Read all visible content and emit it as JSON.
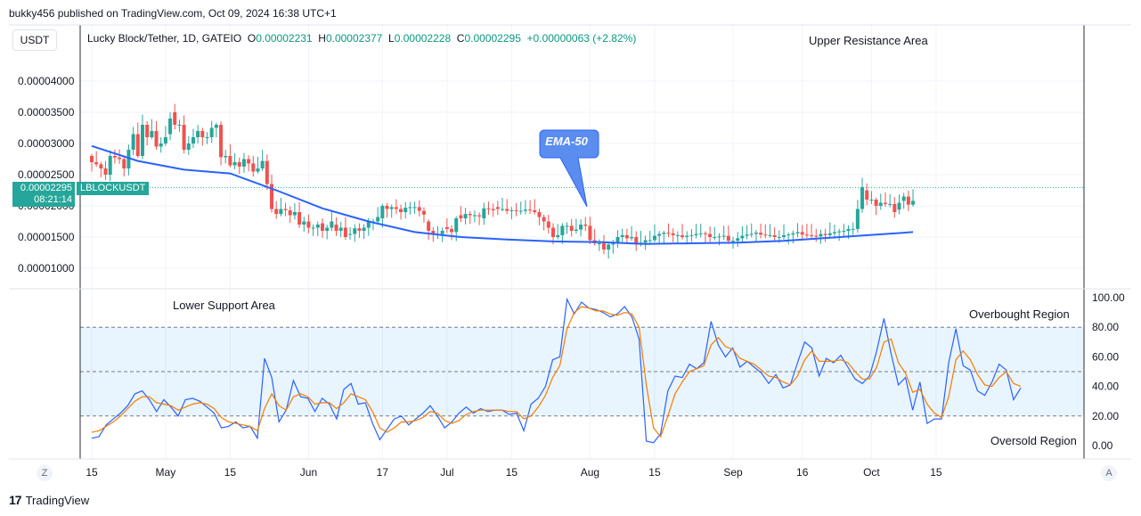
{
  "header": {
    "publisher_line": "bukky456 published on TradingView.com, Oct 09, 2024 16:38 UTC+1"
  },
  "footer": {
    "brand": "TradingView",
    "logo_icon": "tradingview-logo-icon"
  },
  "toolbar": {
    "currency": "USDT",
    "z_label": "Z",
    "a_label": "A"
  },
  "legend": {
    "symbol": "Lucky Block/Tether, 1D, GATEIO",
    "o_label": "O",
    "o_value": "0.00002231",
    "h_label": "H",
    "h_value": "0.00002377",
    "l_label": "L",
    "l_value": "0.00002228",
    "c_label": "C",
    "c_value": "0.00002295",
    "change": "+0.00000063 (+2.82%)"
  },
  "price_tag": {
    "price": "0.00002295",
    "countdown": "08:21:14",
    "symbol": "LBLOCKUSDT"
  },
  "colors": {
    "up": "#26a69a",
    "down": "#ef5350",
    "ema": "#2962ff",
    "rsi": "#2962ff",
    "rsi_ma": "#f57c00",
    "band": "#2196f3",
    "accent": "#26a69a"
  },
  "annotations": {
    "upper": "Upper Resistance Area",
    "lower": "Lower Support Area",
    "overbought": "Overbought Region",
    "oversold": "Oversold Region",
    "ema_callout": "EMA-50"
  },
  "chart_data": [
    {
      "type": "candlestick",
      "title": "Lucky Block/Tether, 1D, GATEIO",
      "ylim": [
        7.5e-06,
        4.8e-06
      ],
      "y_ticks": [
        "0.00001000",
        "0.00001500",
        "0.00002000",
        "0.00002500",
        "0.00003000",
        "0.00003500",
        "0.00004000"
      ],
      "y_tick_values": [
        1e-05,
        1.5e-05,
        2e-05,
        2.5e-05,
        3e-05,
        3.5e-05,
        4e-05
      ],
      "x_ticks": [
        {
          "label": "15",
          "day": 0
        },
        {
          "label": "May",
          "day": 16
        },
        {
          "label": "15",
          "day": 30
        },
        {
          "label": "Jun",
          "day": 47
        },
        {
          "label": "17",
          "day": 63
        },
        {
          "label": "Jul",
          "day": 77
        },
        {
          "label": "15",
          "day": 91
        },
        {
          "label": "Aug",
          "day": 108
        },
        {
          "label": "15",
          "day": 122
        },
        {
          "label": "Sep",
          "day": 139
        },
        {
          "label": "16",
          "day": 154
        },
        {
          "label": "Oct",
          "day": 169
        },
        {
          "label": "15",
          "day": 183
        }
      ],
      "x_start": "Apr 15, 2024",
      "ema_series_name": "EMA-50",
      "anchors": [
        [
          0,
          28,
          27
        ],
        [
          3,
          26,
          25
        ],
        [
          5,
          28
        ],
        [
          7,
          27.5,
          26
        ],
        [
          9,
          29
        ],
        [
          10,
          31.5,
          28
        ],
        [
          12,
          33,
          31
        ],
        [
          14,
          32,
          29.5
        ],
        [
          16,
          30,
          31
        ],
        [
          17,
          31.5,
          34
        ],
        [
          18,
          35,
          33
        ],
        [
          20,
          33,
          29
        ],
        [
          22,
          30,
          31
        ],
        [
          24,
          32,
          31
        ],
        [
          26,
          31,
          32.5
        ],
        [
          28,
          33,
          27.8
        ],
        [
          30,
          28,
          26.5
        ],
        [
          32,
          27,
          26.3
        ],
        [
          34,
          27.5,
          26.8
        ],
        [
          36,
          25.5,
          26
        ],
        [
          38,
          27.2,
          23.5
        ],
        [
          40,
          19.5,
          18.7
        ],
        [
          42,
          19.5,
          19.3
        ],
        [
          44,
          18.5,
          19
        ],
        [
          45,
          19,
          17
        ],
        [
          47,
          17.5,
          16.5
        ],
        [
          49,
          16.5,
          17
        ],
        [
          50,
          17.2,
          16
        ],
        [
          52,
          16.5,
          17.5
        ],
        [
          53,
          17,
          16
        ],
        [
          55,
          16.5,
          15
        ],
        [
          56,
          15.5,
          15.5
        ],
        [
          58,
          16.4,
          16
        ],
        [
          60,
          16.5,
          17.5
        ],
        [
          62,
          17.5,
          18.2
        ],
        [
          63,
          18,
          20
        ],
        [
          65,
          19.5,
          19.8
        ],
        [
          67,
          19.5,
          19
        ],
        [
          70,
          19.8,
          19.8
        ],
        [
          72,
          19.2,
          18.6
        ],
        [
          73,
          17.5,
          16
        ],
        [
          74,
          16,
          15.5
        ],
        [
          76,
          15.5,
          16
        ],
        [
          77,
          16.6,
          16.3
        ],
        [
          79,
          15.8,
          18
        ],
        [
          80,
          18.5,
          18
        ],
        [
          82,
          18.7,
          18.5
        ],
        [
          84,
          18.5,
          18.3
        ],
        [
          85,
          18,
          19.6
        ],
        [
          87,
          19.5,
          19.3
        ],
        [
          88,
          19.8,
          19.5
        ],
        [
          90,
          19.5,
          19.2
        ],
        [
          92,
          19.3,
          19.2
        ],
        [
          94,
          19.2,
          19.4
        ]
      ],
      "ema": [
        [
          0,
          29.6
        ],
        [
          10,
          27.2
        ],
        [
          20,
          25.8
        ],
        [
          30,
          25.2
        ],
        [
          40,
          22.5
        ],
        [
          50,
          19.6
        ],
        [
          60,
          17.5
        ],
        [
          70,
          15.8
        ],
        [
          80,
          15
        ],
        [
          90,
          14.6
        ],
        [
          100,
          14.3
        ],
        [
          110,
          14.2
        ],
        [
          120,
          13.9
        ],
        [
          130,
          14.0
        ],
        [
          140,
          14.1
        ],
        [
          150,
          14.4
        ],
        [
          160,
          14.9
        ],
        [
          170,
          15.4
        ],
        [
          178,
          15.8
        ]
      ]
    },
    {
      "type": "line",
      "title": "RSI",
      "ylim": [
        0,
        100
      ],
      "y_ticks": [
        "0.00",
        "20.00",
        "40.00",
        "60.00",
        "80.00",
        "100.00"
      ],
      "y_tick_values": [
        0,
        20,
        40,
        60,
        80,
        100
      ],
      "band": [
        20,
        80
      ],
      "mid": 50,
      "series": [
        {
          "values": [
            5,
            6,
            14,
            18,
            22,
            27,
            35,
            37,
            31,
            23,
            31,
            26,
            20,
            31,
            32,
            30,
            26,
            22,
            12,
            13,
            16,
            12,
            13,
            5,
            59,
            46,
            16,
            24,
            44,
            33,
            32,
            23,
            32,
            28,
            18,
            38,
            42,
            28,
            29,
            15,
            4,
            11,
            18,
            20,
            14,
            18,
            22,
            27,
            20,
            12,
            16,
            22,
            26,
            22,
            25,
            23,
            24,
            24,
            21,
            22,
            10,
            28,
            32,
            40,
            58,
            60,
            99,
            89,
            97,
            93,
            92,
            90,
            87,
            89,
            94,
            87,
            72,
            3,
            2,
            8,
            37,
            47,
            46,
            55,
            52,
            56,
            84,
            68,
            60,
            66,
            53,
            57,
            53,
            49,
            42,
            48,
            39,
            41,
            56,
            70,
            66,
            47,
            59,
            56,
            61,
            53,
            45,
            42,
            47,
            64,
            86,
            62,
            41,
            46,
            24,
            43,
            15,
            18,
            18,
            56,
            79,
            54,
            51,
            37,
            34,
            43,
            55,
            51,
            31,
            39
          ]
        },
        {
          "values": [
            9,
            10,
            13,
            16,
            20,
            25,
            30,
            33,
            33,
            29,
            28,
            27,
            24,
            26,
            28,
            29,
            28,
            25,
            19,
            16,
            15,
            14,
            13,
            10,
            25,
            35,
            27,
            24,
            33,
            35,
            33,
            28,
            29,
            29,
            25,
            29,
            35,
            33,
            31,
            23,
            12,
            9,
            12,
            16,
            16,
            17,
            19,
            23,
            22,
            17,
            15,
            17,
            21,
            23,
            24,
            24,
            24,
            24,
            23,
            23,
            18,
            20,
            26,
            34,
            46,
            54,
            79,
            90,
            94,
            93,
            91,
            91,
            89,
            88,
            90,
            89,
            80,
            41,
            12,
            6,
            20,
            35,
            43,
            50,
            52,
            54,
            68,
            73,
            67,
            65,
            59,
            57,
            55,
            51,
            47,
            46,
            43,
            41,
            47,
            58,
            64,
            57,
            57,
            57,
            58,
            56,
            50,
            45,
            45,
            53,
            70,
            72,
            56,
            49,
            36,
            38,
            28,
            22,
            19,
            33,
            58,
            64,
            58,
            48,
            41,
            40,
            46,
            50,
            42,
            40
          ]
        }
      ]
    }
  ]
}
